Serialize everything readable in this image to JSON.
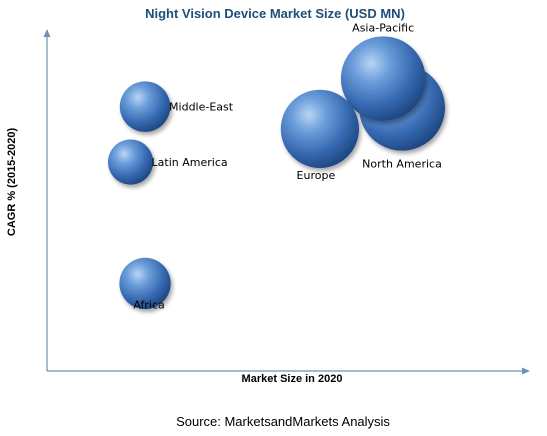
{
  "chart_data": {
    "type": "scatter",
    "title": "Night Vision Device Market Size (USD MN)",
    "xlabel": "Market Size in 2020",
    "ylabel": "CAGR % (2015-2020)",
    "grid": false,
    "legend": "none",
    "note": "Axes carry no numeric tick labels; values below are relative positions in the chart's unitless scale (0-100). Bubble size encodes market size.",
    "xlim": [
      0,
      100
    ],
    "ylim": [
      0,
      100
    ],
    "bubble_color": "#3f7cc4",
    "points": [
      {
        "label": "Asia-Pacific",
        "x": 69.6,
        "y": 85.5,
        "size": 84
      },
      {
        "label": "North America",
        "x": 73.5,
        "y": 77.0,
        "size": 87
      },
      {
        "label": "Europe",
        "x": 56.5,
        "y": 70.8,
        "size": 72
      },
      {
        "label": "Middle-East",
        "x": 20.3,
        "y": 77.3,
        "size": 30
      },
      {
        "label": "Latin America",
        "x": 17.3,
        "y": 61.1,
        "size": 24
      },
      {
        "label": "Africa",
        "x": 20.3,
        "y": 25.6,
        "size": 31
      }
    ]
  },
  "source": "Source: MarketsandMarkets Analysis"
}
